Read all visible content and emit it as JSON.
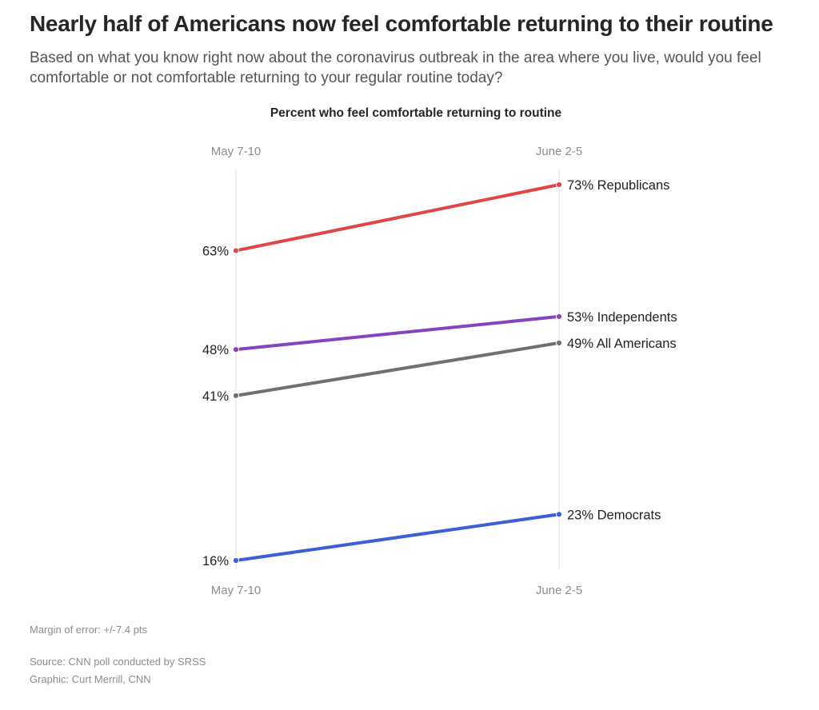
{
  "header": {
    "headline": "Nearly half of Americans now feel comfortable returning to their routine",
    "subhead": "Based on what you know right now about the coronavirus outbreak in the area where you live, would you feel comfortable or not comfortable returning to your regular routine today?"
  },
  "chart_data": {
    "type": "line",
    "title": "Percent who feel comfortable returning to routine",
    "x": [
      "May 7-10",
      "June 2-5"
    ],
    "ylim": [
      16,
      73
    ],
    "grid": false,
    "series": [
      {
        "name": "Republicans",
        "values": [
          63,
          73
        ],
        "color": "#e04646"
      },
      {
        "name": "Independents",
        "values": [
          48,
          53
        ],
        "color": "#8443c0"
      },
      {
        "name": "All Americans",
        "values": [
          41,
          49
        ],
        "color": "#707070"
      },
      {
        "name": "Democrats",
        "values": [
          16,
          23
        ],
        "color": "#3c5fd6"
      }
    ]
  },
  "footer": {
    "margin_of_error": "Margin of error: +/-7.4 pts",
    "source": "Source: CNN poll conducted by SRSS",
    "graphic": "Graphic: Curt Merrill, CNN"
  }
}
